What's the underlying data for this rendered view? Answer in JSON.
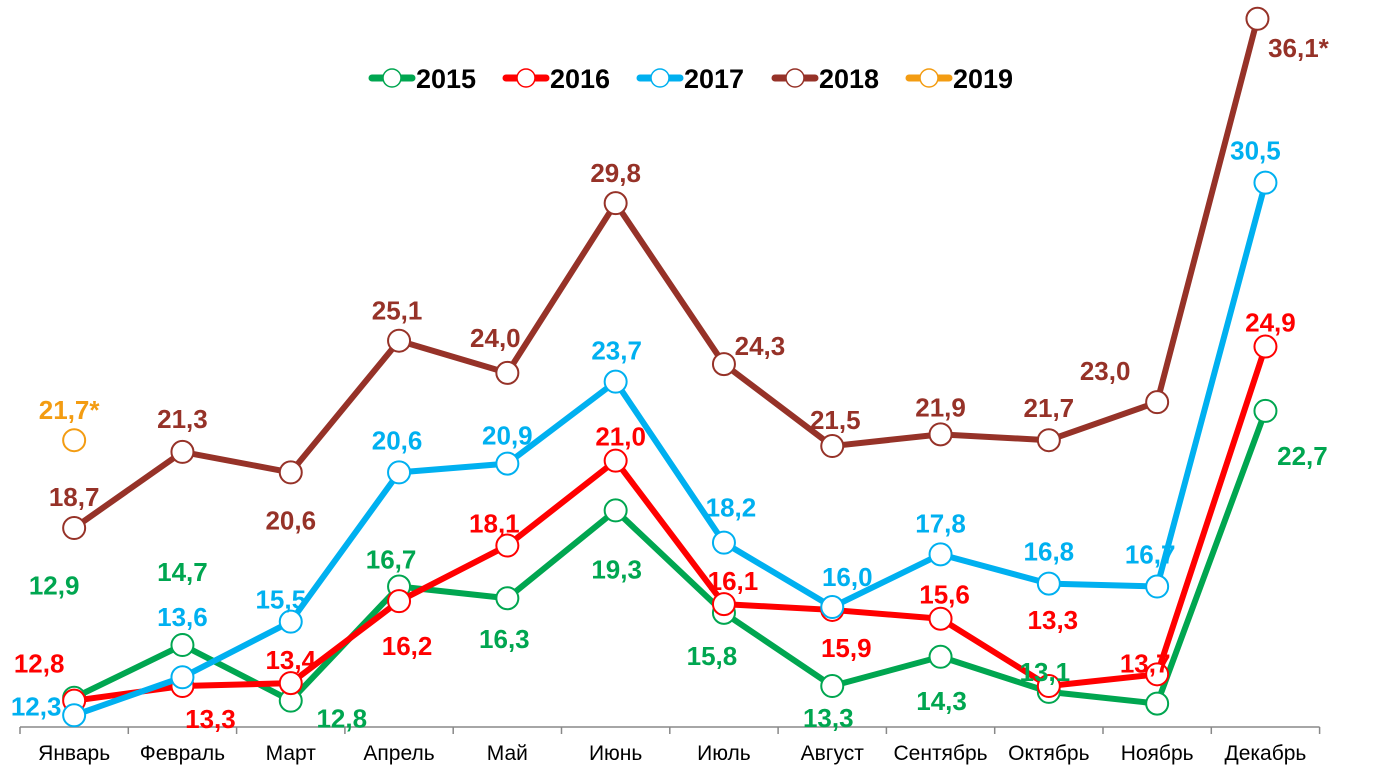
{
  "chart_data": {
    "type": "line",
    "title": "",
    "xlabel": "",
    "ylabel": "",
    "ylim": [
      11.9,
      36.4
    ],
    "grid": false,
    "legend_position": "top",
    "categories": [
      "Январь",
      "Февраль",
      "Март",
      "Апрель",
      "Май",
      "Июнь",
      "Июль",
      "Август",
      "Сентябрь",
      "Октябрь",
      "Ноябрь",
      "Декабрь"
    ],
    "series": [
      {
        "name": "2015",
        "color": "#00a650",
        "values": [
          12.9,
          14.7,
          12.8,
          16.7,
          16.3,
          19.3,
          15.8,
          13.3,
          14.3,
          13.1,
          12.7,
          22.7
        ],
        "labels": [
          "12,9",
          "14,7",
          "12,8",
          "16,7",
          "16,3",
          "19,3",
          "15,8",
          "13,3",
          "14,3",
          "13,1",
          "",
          "22,7"
        ]
      },
      {
        "name": "2016",
        "color": "#ff0000",
        "values": [
          12.8,
          13.3,
          13.4,
          16.2,
          18.1,
          21.0,
          16.1,
          15.9,
          15.6,
          13.3,
          13.7,
          24.9
        ],
        "labels": [
          "12,8",
          "13,3",
          "13,4",
          "16,2",
          "18,1",
          "21,0",
          "16,1",
          "15,9",
          "15,6",
          "13,3",
          "13,7",
          "24,9"
        ]
      },
      {
        "name": "2017",
        "color": "#00b0f0",
        "values": [
          12.3,
          13.6,
          15.5,
          20.6,
          20.9,
          23.7,
          18.2,
          16.0,
          17.8,
          16.8,
          16.7,
          30.5
        ],
        "labels": [
          "12,3",
          "13,6",
          "15,5",
          "20,6",
          "20,9",
          "23,7",
          "18,2",
          "16,0",
          "17,8",
          "16,8",
          "16,7",
          "30,5"
        ]
      },
      {
        "name": "2018",
        "color": "#963228",
        "values": [
          18.7,
          21.3,
          20.6,
          25.1,
          24.0,
          29.8,
          24.3,
          21.5,
          21.9,
          21.7,
          23.0,
          36.1
        ],
        "labels": [
          "18,7",
          "21,3",
          "20,6",
          "25,1",
          "24,0",
          "29,8",
          "24,3",
          "21,5",
          "21,9",
          "21,7",
          "23,0",
          "36,1*"
        ]
      },
      {
        "name": "2019",
        "color": "#f39c12",
        "values": [
          21.7,
          null,
          null,
          null,
          null,
          null,
          null,
          null,
          null,
          null,
          null,
          null
        ],
        "labels": [
          "21,7*",
          "",
          "",
          "",
          "",
          "",
          "",
          "",
          "",
          "",
          "",
          ""
        ]
      }
    ]
  }
}
